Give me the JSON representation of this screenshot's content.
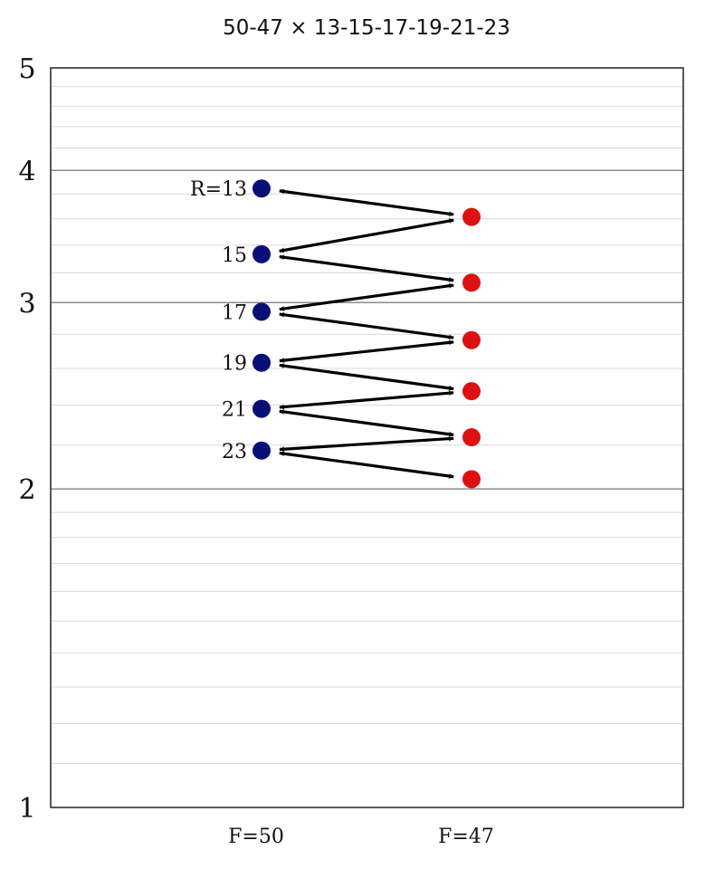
{
  "chart_data": {
    "type": "scatter",
    "title": "50-47 × 13-15-17-19-21-23",
    "y_scale": "log",
    "ylim": [
      1,
      5
    ],
    "yticks": [
      "1",
      "2",
      "3",
      "4",
      "5"
    ],
    "grid": true,
    "categories": [
      "F=50",
      "F=47"
    ],
    "series": [
      {
        "name": "F=50",
        "color": "#0a0f78",
        "x": "F=50",
        "labels": [
          "R=13",
          "15",
          "17",
          "19",
          "21",
          "23"
        ],
        "values": [
          3.846,
          3.333,
          2.941,
          2.632,
          2.381,
          2.174
        ]
      },
      {
        "name": "F=47",
        "color": "#dd1111",
        "x": "F=47",
        "values": [
          3.615,
          3.133,
          2.765,
          2.474,
          2.238,
          2.043
        ]
      }
    ],
    "arrow_sequence": [
      [
        "F=50",
        0,
        "F=47",
        0
      ],
      [
        "F=47",
        0,
        "F=50",
        1
      ],
      [
        "F=50",
        1,
        "F=47",
        1
      ],
      [
        "F=47",
        1,
        "F=50",
        2
      ],
      [
        "F=50",
        2,
        "F=47",
        2
      ],
      [
        "F=47",
        2,
        "F=50",
        3
      ],
      [
        "F=50",
        3,
        "F=47",
        3
      ],
      [
        "F=47",
        3,
        "F=50",
        4
      ],
      [
        "F=50",
        4,
        "F=47",
        4
      ],
      [
        "F=47",
        4,
        "F=50",
        5
      ],
      [
        "F=50",
        5,
        "F=47",
        5
      ]
    ]
  }
}
